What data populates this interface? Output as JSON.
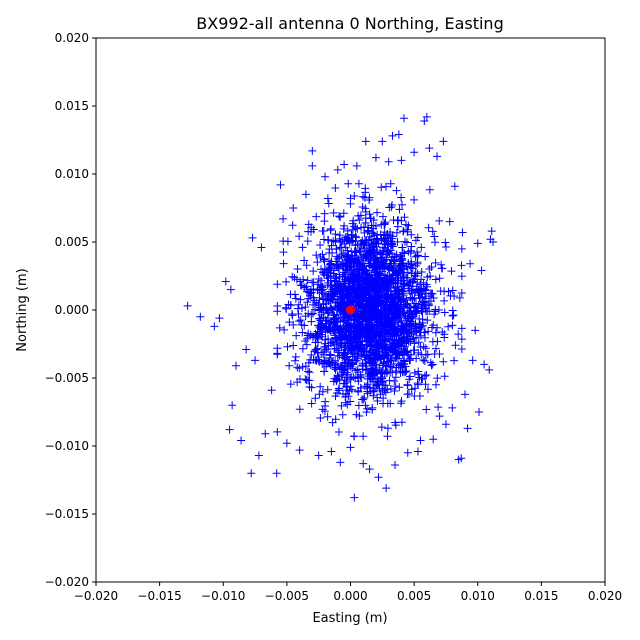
{
  "chart_data": {
    "type": "scatter",
    "title": "BX992-all antenna 0 Northing, Easting",
    "xlabel": "Easting (m)",
    "ylabel": "Northing (m)",
    "xlim": [
      -0.02,
      0.02
    ],
    "ylim": [
      -0.02,
      0.02
    ],
    "xticks": [
      -0.02,
      -0.015,
      -0.01,
      -0.005,
      0.0,
      0.005,
      0.01,
      0.015,
      0.02
    ],
    "yticks": [
      -0.02,
      -0.015,
      -0.01,
      -0.005,
      0.0,
      0.005,
      0.01,
      0.015,
      0.02
    ],
    "xtick_labels": [
      "−0.020",
      "−0.015",
      "−0.010",
      "−0.005",
      "0.000",
      "0.005",
      "0.010",
      "0.015",
      "0.020"
    ],
    "ytick_labels": [
      "−0.020",
      "−0.015",
      "−0.010",
      "−0.005",
      "0.000",
      "0.005",
      "0.010",
      "0.015",
      "0.020"
    ],
    "grid": false,
    "series": [
      {
        "marker": "+",
        "color": "#0000ff",
        "center": [
          0.0015,
          0.0
        ],
        "spread_std": [
          0.0025,
          0.0032
        ],
        "approx_extent": {
          "x": [
            -0.0128,
            0.0112
          ],
          "y": [
            -0.0138,
            0.0143
          ]
        },
        "outliers": [
          [
            -0.0128,
            0.0003
          ],
          [
            -0.0118,
            -0.0005
          ],
          [
            -0.0107,
            -0.0012
          ],
          [
            -0.0103,
            -0.0006
          ],
          [
            -0.0098,
            0.0021
          ],
          [
            -0.0095,
            -0.0088
          ],
          [
            -0.0094,
            0.0015
          ],
          [
            -0.0093,
            -0.007
          ],
          [
            -0.009,
            -0.0041
          ],
          [
            -0.0086,
            -0.0096
          ],
          [
            -0.0082,
            -0.0029
          ],
          [
            -0.0078,
            -0.012
          ],
          [
            -0.0077,
            0.0053
          ],
          [
            -0.0075,
            -0.0037
          ],
          [
            -0.0072,
            -0.0107
          ],
          [
            -0.007,
            0.0046
          ],
          [
            -0.0067,
            -0.0091
          ],
          [
            -0.0062,
            -0.0059
          ],
          [
            -0.0058,
            -0.012
          ],
          [
            -0.0055,
            0.0092
          ],
          [
            -0.0053,
            0.0067
          ],
          [
            -0.005,
            -0.0098
          ],
          [
            -0.0045,
            0.0075
          ],
          [
            -0.004,
            -0.0103
          ],
          [
            -0.0035,
            0.0085
          ],
          [
            -0.003,
            0.0117
          ],
          [
            -0.003,
            0.0106
          ],
          [
            -0.0025,
            -0.0107
          ],
          [
            -0.002,
            0.0098
          ],
          [
            -0.0015,
            -0.0104
          ],
          [
            -0.001,
            0.0103
          ],
          [
            -0.0008,
            -0.0112
          ],
          [
            -0.0005,
            0.0107
          ],
          [
            0.0,
            -0.0101
          ],
          [
            0.0003,
            -0.0138
          ],
          [
            0.0005,
            0.0106
          ],
          [
            0.001,
            -0.0113
          ],
          [
            0.0012,
            0.0124
          ],
          [
            0.0015,
            -0.0117
          ],
          [
            0.002,
            0.0112
          ],
          [
            0.0022,
            -0.0123
          ],
          [
            0.0025,
            0.0124
          ],
          [
            0.0028,
            -0.0131
          ],
          [
            0.003,
            0.0109
          ],
          [
            0.0033,
            0.0128
          ],
          [
            0.0035,
            -0.0114
          ],
          [
            0.0038,
            0.0129
          ],
          [
            0.004,
            0.011
          ],
          [
            0.0042,
            0.0141
          ],
          [
            0.0045,
            -0.0105
          ],
          [
            0.005,
            0.0116
          ],
          [
            0.0053,
            -0.0104
          ],
          [
            0.0055,
            -0.0096
          ],
          [
            0.0058,
            0.0139
          ],
          [
            0.006,
            0.0142
          ],
          [
            0.0062,
            0.0119
          ],
          [
            0.0065,
            -0.0095
          ],
          [
            0.0068,
            0.0113
          ],
          [
            0.007,
            -0.0078
          ],
          [
            0.0073,
            0.0124
          ],
          [
            0.0075,
            -0.0084
          ],
          [
            0.0078,
            0.0065
          ],
          [
            0.008,
            -0.0072
          ],
          [
            0.0082,
            0.0091
          ],
          [
            0.0085,
            -0.011
          ],
          [
            0.0087,
            -0.0109
          ],
          [
            0.0088,
            0.0057
          ],
          [
            0.009,
            -0.0062
          ],
          [
            0.0092,
            -0.0087
          ],
          [
            0.0094,
            0.0034
          ],
          [
            0.0096,
            -0.0037
          ],
          [
            0.0098,
            -0.0015
          ],
          [
            0.01,
            0.0049
          ],
          [
            0.0101,
            -0.0075
          ],
          [
            0.0103,
            0.0029
          ],
          [
            0.0105,
            -0.004
          ],
          [
            0.0109,
            -0.0044
          ],
          [
            0.011,
            0.0052
          ],
          [
            0.0111,
            0.0058
          ],
          [
            0.0112,
            0.005
          ]
        ]
      },
      {
        "marker": "o",
        "color": "#ff0000",
        "points": [
          [
            0.0,
            0.0
          ]
        ]
      }
    ]
  }
}
